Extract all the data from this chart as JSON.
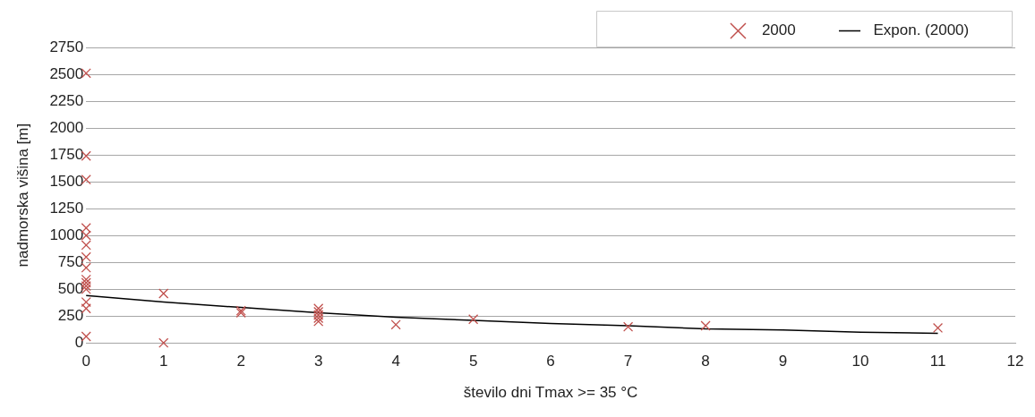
{
  "chart_data": {
    "type": "scatter",
    "xlabel": "število dni Tmax >= 35 °C",
    "ylabel": "nadmorska višina [m]",
    "xlim": [
      0,
      12
    ],
    "xticks": [
      0,
      1,
      2,
      3,
      4,
      5,
      6,
      7,
      8,
      9,
      10,
      11,
      12
    ],
    "ylim": [
      0,
      2750
    ],
    "yticks": [
      0,
      250,
      500,
      750,
      1000,
      1250,
      1500,
      1750,
      2000,
      2250,
      2500,
      2750
    ],
    "grid": "y",
    "legend": "top right",
    "marker": "cross",
    "series": [
      {
        "name": "2000",
        "color": "#c0504d",
        "x": [
          0,
          0,
          0,
          0,
          0,
          0,
          0,
          0,
          0,
          0,
          0,
          0,
          0,
          0,
          0,
          1,
          1,
          2,
          2,
          3,
          3,
          3,
          3,
          3,
          4,
          5,
          7,
          8,
          11
        ],
        "values": [
          2510,
          1740,
          1520,
          1070,
          1000,
          910,
          800,
          700,
          590,
          560,
          530,
          500,
          380,
          320,
          60,
          460,
          0,
          300,
          280,
          320,
          290,
          260,
          230,
          200,
          170,
          220,
          150,
          160,
          140
        ]
      },
      {
        "name": "Expon. (2000)",
        "type": "line",
        "color": "#000000",
        "line_style": "solid",
        "marker": "none",
        "x": [
          0,
          1,
          2,
          3,
          4,
          5,
          6,
          7,
          8,
          9,
          10,
          11
        ],
        "values": [
          440,
          380,
          330,
          280,
          240,
          210,
          180,
          160,
          130,
          120,
          100,
          90
        ]
      }
    ]
  }
}
